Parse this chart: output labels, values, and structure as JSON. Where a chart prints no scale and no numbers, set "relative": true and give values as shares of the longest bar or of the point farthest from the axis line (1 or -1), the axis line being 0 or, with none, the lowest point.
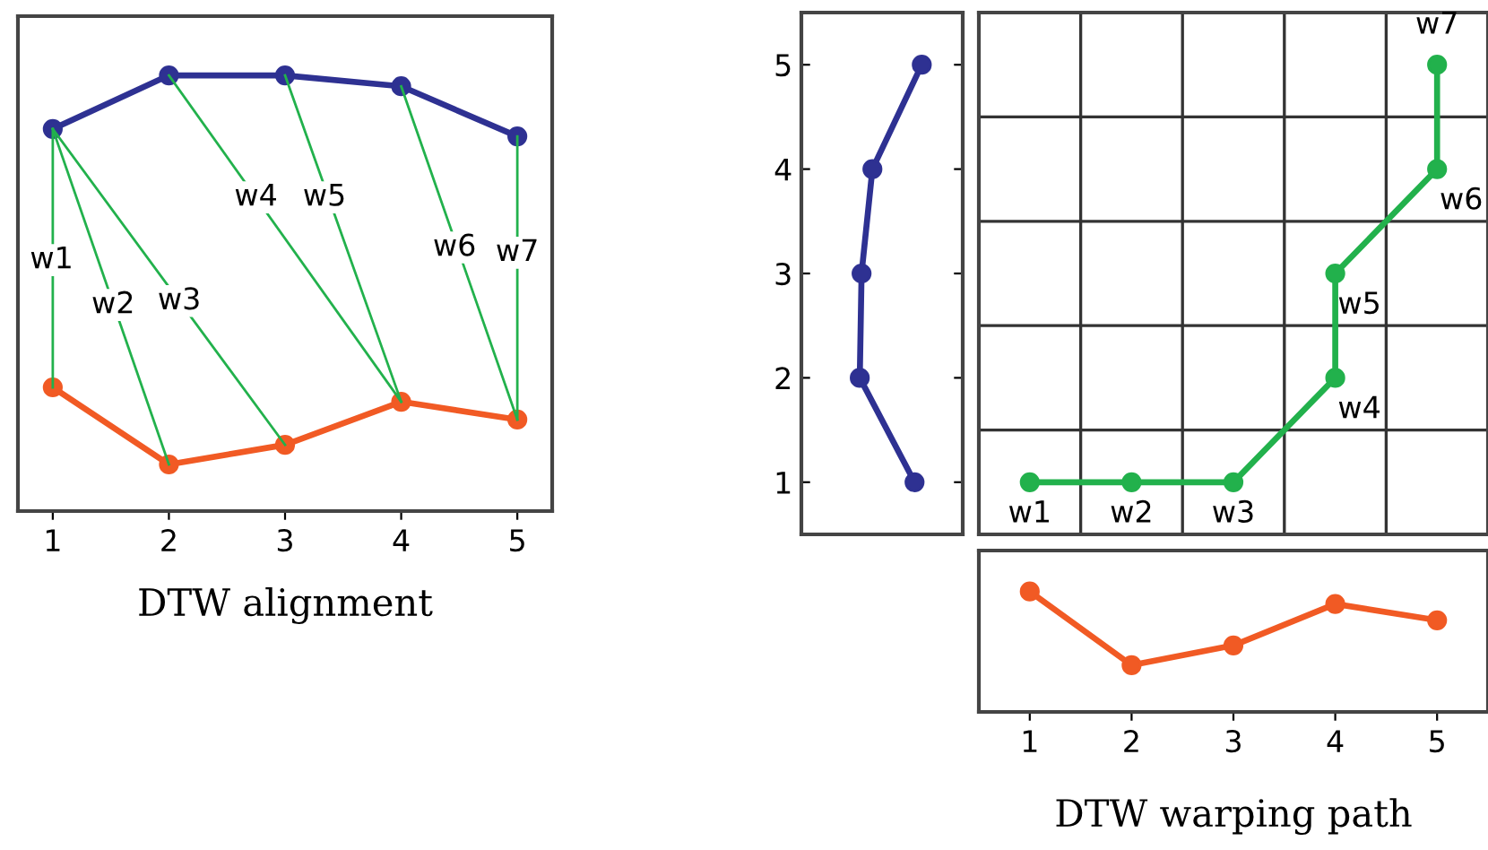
{
  "chart_data": [
    {
      "type": "line",
      "xlabel": "DTW alignment",
      "x": [
        1,
        2,
        3,
        4,
        5
      ],
      "xlim": [
        0.7,
        5.3
      ],
      "xticks": [
        1,
        2,
        3,
        4,
        5
      ],
      "relative": true,
      "tick_labels": "x",
      "marker": "circle",
      "series": [
        {
          "color": "#2e3192",
          "values": [
            0.877,
            1,
            1,
            0.975,
            0.86
          ]
        },
        {
          "color": "#f15a24",
          "values": [
            0.284,
            0.107,
            0.152,
            0.251,
            0.21
          ]
        },
        {
          "color": "#22b14c",
          "marker": "none",
          "x": [
            1,
            1
          ],
          "values": [
            0.877,
            0.284
          ]
        },
        {
          "color": "#22b14c",
          "marker": "none",
          "x": [
            1,
            2
          ],
          "values": [
            0.877,
            0.107
          ]
        },
        {
          "color": "#22b14c",
          "marker": "none",
          "x": [
            1,
            3
          ],
          "values": [
            0.877,
            0.152
          ]
        },
        {
          "color": "#22b14c",
          "marker": "none",
          "x": [
            2,
            4
          ],
          "values": [
            1,
            0.251
          ]
        },
        {
          "color": "#22b14c",
          "marker": "none",
          "x": [
            3,
            4
          ],
          "values": [
            1,
            0.251
          ]
        },
        {
          "color": "#22b14c",
          "marker": "none",
          "x": [
            4,
            5
          ],
          "values": [
            0.975,
            0.21
          ]
        },
        {
          "color": "#22b14c",
          "marker": "none",
          "x": [
            5,
            5
          ],
          "values": [
            0.86,
            0.21
          ]
        }
      ],
      "annotations": [
        {
          "text": "w1",
          "x": 0.99,
          "y": 0.576
        },
        {
          "text": "w2",
          "x": 1.52,
          "y": 0.473
        },
        {
          "text": "w3",
          "x": 2.09,
          "y": 0.482
        },
        {
          "text": "w4",
          "x": 2.75,
          "y": 0.72
        },
        {
          "text": "w5",
          "x": 3.34,
          "y": 0.72
        },
        {
          "text": "w6",
          "x": 4.46,
          "y": 0.605
        },
        {
          "text": "w7",
          "x": 5.0,
          "y": 0.593
        }
      ]
    },
    {
      "type": "line",
      "orientation": "horizontal",
      "relative": true,
      "x": [
        1,
        2,
        3,
        4,
        5
      ],
      "ylim": [
        0.5,
        5.5
      ],
      "yticks": [
        1,
        2,
        3,
        4,
        5
      ],
      "tick_labels": "y",
      "marker": "circle",
      "series": [
        {
          "color": "#2e3192",
          "values": [
            0.94,
            0.485,
            0.5,
            0.59,
            1
          ]
        }
      ]
    },
    {
      "type": "line",
      "xlim": [
        0.5,
        5.5
      ],
      "ylim": [
        0.5,
        5.5
      ],
      "xticks": [
        {
          "value": 1.5,
          "label": null
        },
        {
          "value": 2.5,
          "label": null
        },
        {
          "value": 3.5,
          "label": null
        },
        {
          "value": 4.5,
          "label": null
        }
      ],
      "yticks": [
        {
          "value": 1.5,
          "label": null
        },
        {
          "value": 2.5,
          "label": null
        },
        {
          "value": 3.5,
          "label": null
        },
        {
          "value": 4.5,
          "label": null
        }
      ],
      "grid": true,
      "tick_labels": false,
      "marker": "circle",
      "series": [
        {
          "color": "#22b14c",
          "x": [
            1,
            2,
            3,
            4,
            4,
            5,
            5
          ],
          "values": [
            1,
            1,
            1,
            2,
            3,
            4,
            5
          ]
        }
      ],
      "annotations": [
        {
          "text": "w1",
          "x": 1,
          "y": 1
        },
        {
          "text": "w2",
          "x": 2,
          "y": 1
        },
        {
          "text": "w3",
          "x": 3,
          "y": 1
        },
        {
          "text": "w4",
          "x": 4,
          "y": 2
        },
        {
          "text": "w5",
          "x": 4,
          "y": 3
        },
        {
          "text": "w6",
          "x": 5,
          "y": 4
        },
        {
          "text": "w7",
          "x": 5,
          "y": 5
        }
      ]
    },
    {
      "type": "line",
      "xlabel": "DTW warping path",
      "x": [
        1,
        2,
        3,
        4,
        5
      ],
      "xlim": [
        0.5,
        5.5
      ],
      "xticks": [
        1,
        2,
        3,
        4,
        5
      ],
      "relative": true,
      "tick_labels": "x",
      "marker": "circle",
      "series": [
        {
          "color": "#f15a24",
          "values": [
            1,
            0.388,
            0.552,
            0.896,
            0.761
          ]
        }
      ]
    }
  ]
}
